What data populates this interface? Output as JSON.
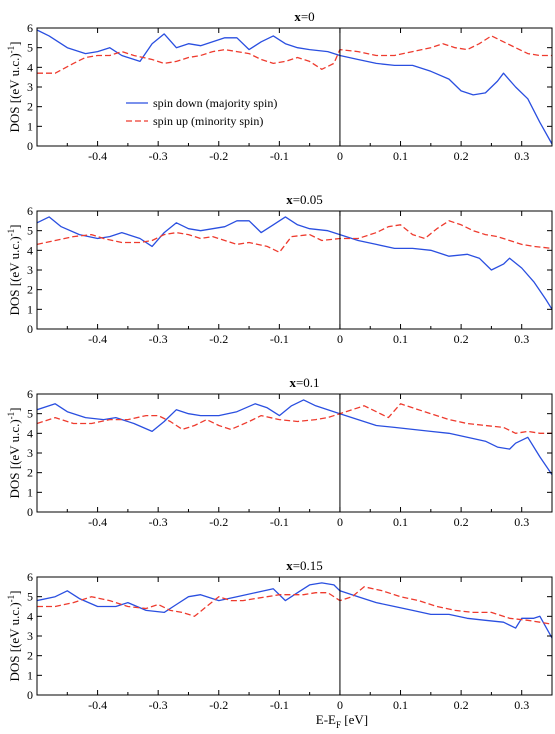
{
  "colors": {
    "spin_down": "#2a4fe0",
    "spin_up": "#ee3b2e",
    "axis": "#000000"
  },
  "chart_data": [
    {
      "type": "line",
      "title": "x=0",
      "title_var": "x",
      "title_rest": "=0",
      "ylabel": "DOS [(eV u.c.)",
      "ylabel_sup": "-1",
      "ylabel_close": "]",
      "xlim": [
        -0.5,
        0.35
      ],
      "ylim": [
        0,
        6
      ],
      "xticks": [
        -0.4,
        -0.3,
        -0.2,
        -0.1,
        0,
        0.1,
        0.2,
        0.3
      ],
      "xtick_labels": [
        "-0.4",
        "-0.3",
        "-0.2",
        "-0.1",
        "0",
        "0.1",
        "0.2",
        "0.3"
      ],
      "yticks": [
        0,
        1,
        2,
        3,
        4,
        5,
        6
      ],
      "ytick_labels": [
        "0",
        "1",
        "2",
        "3",
        "4",
        "5",
        "6"
      ],
      "legend": {
        "placement": "center-left",
        "entries": [
          "spin down (majority spin)",
          "spin up (minority spin)"
        ]
      },
      "series": [
        {
          "name": "spin down (majority spin)",
          "color": "#2a4fe0",
          "dash": "solid",
          "x": [
            -0.5,
            -0.48,
            -0.45,
            -0.42,
            -0.4,
            -0.38,
            -0.36,
            -0.33,
            -0.31,
            -0.29,
            -0.27,
            -0.25,
            -0.23,
            -0.21,
            -0.19,
            -0.17,
            -0.15,
            -0.13,
            -0.11,
            -0.09,
            -0.07,
            -0.05,
            -0.02,
            0,
            0.03,
            0.06,
            0.09,
            0.12,
            0.15,
            0.18,
            0.2,
            0.22,
            0.24,
            0.26,
            0.27,
            0.29,
            0.31,
            0.33,
            0.35
          ],
          "y": [
            5.9,
            5.6,
            5.0,
            4.7,
            4.8,
            5.0,
            4.6,
            4.3,
            5.2,
            5.7,
            5.0,
            5.2,
            5.1,
            5.3,
            5.5,
            5.5,
            4.9,
            5.3,
            5.6,
            5.2,
            5.0,
            4.9,
            4.8,
            4.6,
            4.4,
            4.2,
            4.1,
            4.1,
            3.8,
            3.4,
            2.8,
            2.6,
            2.7,
            3.3,
            3.7,
            3.0,
            2.4,
            1.2,
            0.1
          ]
        },
        {
          "name": "spin up (minority spin)",
          "color": "#ee3b2e",
          "dash": "dashed",
          "x": [
            -0.5,
            -0.47,
            -0.44,
            -0.42,
            -0.4,
            -0.38,
            -0.36,
            -0.34,
            -0.31,
            -0.29,
            -0.27,
            -0.25,
            -0.23,
            -0.21,
            -0.19,
            -0.17,
            -0.15,
            -0.13,
            -0.11,
            -0.09,
            -0.07,
            -0.05,
            -0.03,
            -0.01,
            0,
            0.03,
            0.06,
            0.09,
            0.12,
            0.15,
            0.17,
            0.19,
            0.21,
            0.23,
            0.25,
            0.27,
            0.29,
            0.31,
            0.33,
            0.35
          ],
          "y": [
            3.7,
            3.7,
            4.2,
            4.5,
            4.6,
            4.6,
            4.8,
            4.6,
            4.4,
            4.2,
            4.3,
            4.5,
            4.6,
            4.8,
            4.9,
            4.8,
            4.7,
            4.4,
            4.2,
            4.3,
            4.5,
            4.3,
            3.9,
            4.2,
            4.9,
            4.8,
            4.6,
            4.6,
            4.8,
            5.0,
            5.2,
            5.0,
            4.9,
            5.2,
            5.6,
            5.3,
            5.0,
            4.7,
            4.6,
            4.6
          ]
        }
      ]
    },
    {
      "type": "line",
      "title": "x=0.05",
      "title_var": "x",
      "title_rest": "=0.05",
      "ylabel": "DOS [(eV u.c.)",
      "ylabel_sup": "-1",
      "ylabel_close": "]",
      "xlim": [
        -0.5,
        0.35
      ],
      "ylim": [
        0,
        6
      ],
      "xticks": [
        -0.4,
        -0.3,
        -0.2,
        -0.1,
        0,
        0.1,
        0.2,
        0.3
      ],
      "xtick_labels": [
        "-0.4",
        "-0.3",
        "-0.2",
        "-0.1",
        "0",
        "0.1",
        "0.2",
        "0.3"
      ],
      "yticks": [
        0,
        1,
        2,
        3,
        4,
        5,
        6
      ],
      "ytick_labels": [
        "0",
        "1",
        "2",
        "3",
        "4",
        "5",
        "6"
      ],
      "series": [
        {
          "name": "spin down (majority spin)",
          "color": "#2a4fe0",
          "dash": "solid",
          "x": [
            -0.5,
            -0.48,
            -0.46,
            -0.43,
            -0.4,
            -0.38,
            -0.36,
            -0.33,
            -0.31,
            -0.29,
            -0.27,
            -0.25,
            -0.23,
            -0.21,
            -0.19,
            -0.17,
            -0.15,
            -0.13,
            -0.11,
            -0.09,
            -0.07,
            -0.05,
            -0.02,
            0,
            0.03,
            0.06,
            0.09,
            0.12,
            0.15,
            0.18,
            0.21,
            0.23,
            0.25,
            0.27,
            0.28,
            0.3,
            0.32,
            0.34,
            0.35
          ],
          "y": [
            5.4,
            5.7,
            5.2,
            4.8,
            4.6,
            4.7,
            4.9,
            4.6,
            4.2,
            4.9,
            5.4,
            5.1,
            5.0,
            5.1,
            5.2,
            5.5,
            5.5,
            4.9,
            5.3,
            5.7,
            5.3,
            5.1,
            5.0,
            4.8,
            4.5,
            4.3,
            4.1,
            4.1,
            4.0,
            3.7,
            3.8,
            3.6,
            3.0,
            3.3,
            3.6,
            3.1,
            2.4,
            1.5,
            1.0
          ]
        },
        {
          "name": "spin up (minority spin)",
          "color": "#ee3b2e",
          "dash": "dashed",
          "x": [
            -0.5,
            -0.47,
            -0.44,
            -0.41,
            -0.39,
            -0.36,
            -0.33,
            -0.31,
            -0.29,
            -0.27,
            -0.25,
            -0.23,
            -0.21,
            -0.19,
            -0.17,
            -0.15,
            -0.12,
            -0.1,
            -0.08,
            -0.05,
            -0.03,
            0,
            0.03,
            0.06,
            0.08,
            0.1,
            0.12,
            0.14,
            0.16,
            0.18,
            0.2,
            0.22,
            0.24,
            0.26,
            0.28,
            0.3,
            0.32,
            0.35
          ],
          "y": [
            4.3,
            4.5,
            4.7,
            4.8,
            4.6,
            4.4,
            4.4,
            4.5,
            4.8,
            4.9,
            4.8,
            4.6,
            4.7,
            4.5,
            4.3,
            4.4,
            4.2,
            3.9,
            4.7,
            4.8,
            4.5,
            4.6,
            4.6,
            4.9,
            5.2,
            5.3,
            4.8,
            4.6,
            5.1,
            5.5,
            5.3,
            5.0,
            4.8,
            4.7,
            4.5,
            4.3,
            4.2,
            4.1
          ]
        }
      ]
    },
    {
      "type": "line",
      "title": "x=0.1",
      "title_var": "x",
      "title_rest": "=0.1",
      "ylabel": "DOS [(eV u.c.)",
      "ylabel_sup": "-1",
      "ylabel_close": "]",
      "xlim": [
        -0.5,
        0.35
      ],
      "ylim": [
        0,
        6
      ],
      "xticks": [
        -0.4,
        -0.3,
        -0.2,
        -0.1,
        0,
        0.1,
        0.2,
        0.3
      ],
      "xtick_labels": [
        "-0.4",
        "-0.3",
        "-0.2",
        "-0.1",
        "0",
        "0.1",
        "0.2",
        "0.3"
      ],
      "yticks": [
        0,
        1,
        2,
        3,
        4,
        5,
        6
      ],
      "ytick_labels": [
        "0",
        "1",
        "2",
        "3",
        "4",
        "5",
        "6"
      ],
      "series": [
        {
          "name": "spin down (majority spin)",
          "color": "#2a4fe0",
          "dash": "solid",
          "x": [
            -0.5,
            -0.47,
            -0.45,
            -0.42,
            -0.39,
            -0.37,
            -0.34,
            -0.31,
            -0.29,
            -0.27,
            -0.25,
            -0.23,
            -0.2,
            -0.17,
            -0.14,
            -0.12,
            -0.1,
            -0.08,
            -0.06,
            -0.04,
            -0.02,
            0,
            0.03,
            0.06,
            0.09,
            0.12,
            0.15,
            0.18,
            0.21,
            0.24,
            0.26,
            0.28,
            0.29,
            0.31,
            0.33,
            0.35
          ],
          "y": [
            5.2,
            5.5,
            5.1,
            4.8,
            4.7,
            4.8,
            4.5,
            4.1,
            4.6,
            5.2,
            5.0,
            4.9,
            4.9,
            5.1,
            5.5,
            5.3,
            4.9,
            5.4,
            5.7,
            5.4,
            5.2,
            5.0,
            4.7,
            4.4,
            4.3,
            4.2,
            4.1,
            4.0,
            3.8,
            3.6,
            3.3,
            3.2,
            3.5,
            3.8,
            2.8,
            1.9
          ]
        },
        {
          "name": "spin up (minority spin)",
          "color": "#ee3b2e",
          "dash": "dashed",
          "x": [
            -0.5,
            -0.47,
            -0.44,
            -0.41,
            -0.38,
            -0.35,
            -0.32,
            -0.3,
            -0.28,
            -0.26,
            -0.24,
            -0.22,
            -0.2,
            -0.18,
            -0.15,
            -0.13,
            -0.1,
            -0.07,
            -0.04,
            -0.02,
            0,
            0.02,
            0.04,
            0.06,
            0.08,
            0.1,
            0.12,
            0.15,
            0.18,
            0.21,
            0.24,
            0.27,
            0.29,
            0.31,
            0.33,
            0.35
          ],
          "y": [
            4.5,
            4.8,
            4.5,
            4.5,
            4.7,
            4.7,
            4.9,
            4.9,
            4.6,
            4.2,
            4.4,
            4.7,
            4.4,
            4.2,
            4.6,
            4.9,
            4.7,
            4.6,
            4.7,
            4.8,
            5.0,
            5.2,
            5.4,
            5.1,
            4.8,
            5.5,
            5.3,
            5.0,
            4.7,
            4.5,
            4.4,
            4.3,
            4.0,
            4.1,
            4.0,
            4.0
          ]
        }
      ]
    },
    {
      "type": "line",
      "title": "x=0.15",
      "title_var": "x",
      "title_rest": "=0.15",
      "ylabel": "DOS [(eV u.c.)",
      "ylabel_sup": "-1",
      "ylabel_close": "]",
      "xlabel": "E-E",
      "xlabel_sub": "F",
      "xlabel_rest": " [eV]",
      "xlim": [
        -0.5,
        0.35
      ],
      "ylim": [
        0,
        6
      ],
      "xticks": [
        -0.4,
        -0.3,
        -0.2,
        -0.1,
        0,
        0.1,
        0.2,
        0.3
      ],
      "xtick_labels": [
        "-0.4",
        "-0.3",
        "-0.2",
        "-0.1",
        "0",
        "0.1",
        "0.2",
        "0.3"
      ],
      "yticks": [
        0,
        1,
        2,
        3,
        4,
        5,
        6
      ],
      "ytick_labels": [
        "0",
        "1",
        "2",
        "3",
        "4",
        "5",
        "6"
      ],
      "series": [
        {
          "name": "spin down (majority spin)",
          "color": "#2a4fe0",
          "dash": "solid",
          "x": [
            -0.5,
            -0.47,
            -0.45,
            -0.43,
            -0.4,
            -0.37,
            -0.35,
            -0.32,
            -0.29,
            -0.27,
            -0.25,
            -0.23,
            -0.2,
            -0.17,
            -0.14,
            -0.11,
            -0.09,
            -0.07,
            -0.05,
            -0.03,
            -0.01,
            0,
            0.03,
            0.06,
            0.09,
            0.12,
            0.15,
            0.18,
            0.21,
            0.24,
            0.27,
            0.29,
            0.3,
            0.32,
            0.33,
            0.35
          ],
          "y": [
            4.8,
            5.0,
            5.3,
            4.9,
            4.5,
            4.5,
            4.7,
            4.3,
            4.2,
            4.6,
            5.0,
            5.1,
            4.8,
            5.0,
            5.2,
            5.4,
            4.8,
            5.2,
            5.6,
            5.7,
            5.6,
            5.3,
            5.0,
            4.7,
            4.5,
            4.3,
            4.1,
            4.1,
            3.9,
            3.8,
            3.7,
            3.4,
            3.9,
            3.9,
            4.0,
            2.9
          ]
        },
        {
          "name": "spin up (minority spin)",
          "color": "#ee3b2e",
          "dash": "dashed",
          "x": [
            -0.5,
            -0.47,
            -0.44,
            -0.41,
            -0.38,
            -0.35,
            -0.32,
            -0.3,
            -0.28,
            -0.26,
            -0.24,
            -0.22,
            -0.2,
            -0.18,
            -0.16,
            -0.14,
            -0.12,
            -0.1,
            -0.08,
            -0.06,
            -0.04,
            -0.02,
            0,
            0.02,
            0.04,
            0.07,
            0.1,
            0.13,
            0.16,
            0.19,
            0.22,
            0.25,
            0.28,
            0.31,
            0.33,
            0.35
          ],
          "y": [
            4.5,
            4.5,
            4.7,
            5.0,
            4.8,
            4.5,
            4.4,
            4.6,
            4.3,
            4.2,
            4.0,
            4.5,
            5.0,
            4.8,
            4.8,
            4.9,
            5.0,
            5.1,
            5.1,
            5.1,
            5.2,
            5.2,
            4.8,
            5.0,
            5.5,
            5.3,
            5.0,
            4.8,
            4.5,
            4.3,
            4.2,
            4.2,
            3.9,
            3.8,
            3.7,
            3.6
          ]
        }
      ]
    }
  ]
}
